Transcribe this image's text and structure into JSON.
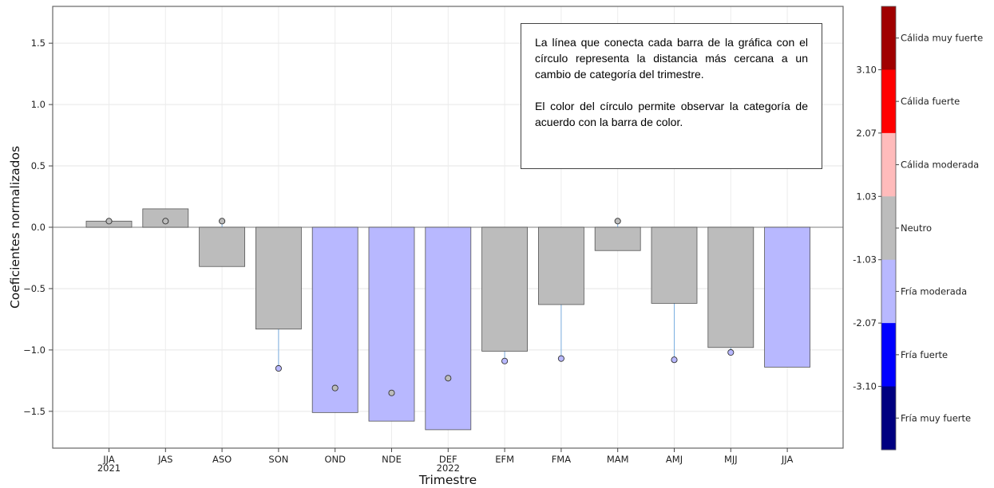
{
  "chart_data": {
    "type": "bar",
    "xlabel": "Trimestre",
    "ylabel": "Coeficientes normalizados",
    "ylim": [
      -1.8,
      1.8
    ],
    "yticks": [
      -1.5,
      -1.0,
      -0.5,
      0.0,
      0.5,
      1.0,
      1.5
    ],
    "ytick_labels": [
      "−1.5",
      "−1.0",
      "−0.5",
      "0.0",
      "0.5",
      "1.0",
      "1.5"
    ],
    "grid": true,
    "categories": [
      "JJA",
      "JAS",
      "ASO",
      "SON",
      "OND",
      "NDE",
      "DEF",
      "EFM",
      "FMA",
      "MAM",
      "AMJ",
      "MJJ",
      "JJA"
    ],
    "category_sublabels": [
      "2021",
      "",
      "",
      "",
      "",
      "",
      "2022",
      "",
      "",
      "",
      "",
      "",
      ""
    ],
    "values": [
      0.05,
      0.15,
      -0.32,
      -0.83,
      -1.51,
      -1.58,
      -1.65,
      -1.01,
      -0.63,
      -0.19,
      -0.62,
      -0.98,
      -1.14
    ],
    "bar_categories": [
      "Neutro",
      "Neutro",
      "Neutro",
      "Neutro",
      "Fría moderada",
      "Fría moderada",
      "Fría moderada",
      "Neutro",
      "Neutro",
      "Neutro",
      "Neutro",
      "Neutro",
      "Fría moderada"
    ],
    "circle_values": [
      0.05,
      0.05,
      0.05,
      -1.15,
      -1.31,
      -1.35,
      -1.23,
      -1.09,
      -1.07,
      0.05,
      -1.08,
      -1.02,
      null
    ],
    "circle_categories": [
      "Neutro",
      "Neutro",
      "Neutro",
      "Fría moderada",
      "Neutro",
      "Neutro",
      "Neutro",
      "Fría moderada",
      "Fría moderada",
      "Neutro",
      "Fría moderada",
      "Fría moderada",
      null
    ],
    "colorbar": {
      "segments": [
        {
          "label": "Cálida muy fuerte",
          "color": "#a00000"
        },
        {
          "label": "Cálida fuerte",
          "color": "#ff0000"
        },
        {
          "label": "Cálida moderada",
          "color": "#ffbbbb"
        },
        {
          "label": "Neutro",
          "color": "#bcbcbc"
        },
        {
          "label": "Fría moderada",
          "color": "#b8b8ff"
        },
        {
          "label": "Fría fuerte",
          "color": "#0000ff"
        },
        {
          "label": "Fría muy fuerte",
          "color": "#000080"
        }
      ],
      "boundary_labels": [
        "3.10",
        "2.07",
        "1.03",
        "-1.03",
        "-2.07",
        "-3.10"
      ]
    },
    "annotation": [
      "La línea que conecta cada barra de la gráfica con el círculo representa la distancia más cercana a un cambio de categoría del trimestre.",
      "El color del círculo permite observar la categoría de acuerdo con la barra de color."
    ]
  }
}
